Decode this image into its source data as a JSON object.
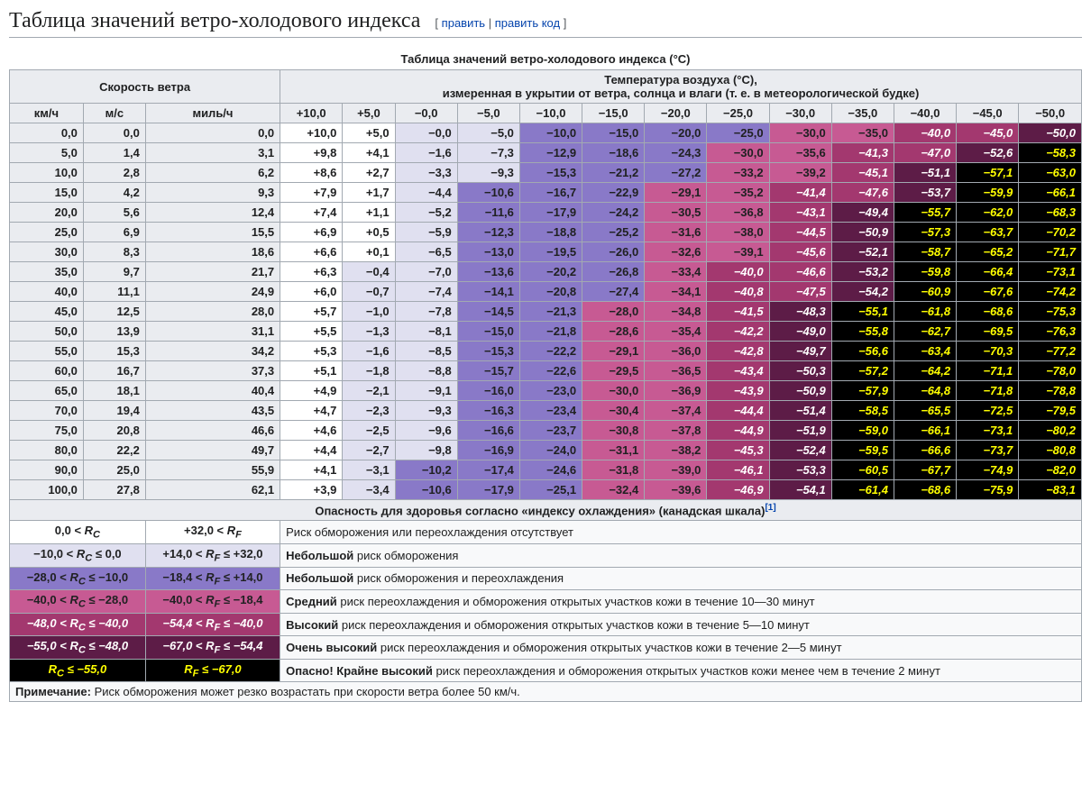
{
  "heading": "Таблица значений ветро-холодового индекса",
  "edit": {
    "open": "[",
    "sep": " | ",
    "close": "]",
    "edit": "править",
    "editcode": "править код"
  },
  "caption": "Таблица значений ветро-холодового индекса (°C)",
  "windHeader": "Скорость ветра",
  "tempHeader1": "Температура воздуха (°C),",
  "tempHeader2": "измеренная в укрытии от ветра, солнца и влаги (т. е. в метеорологической будке)",
  "windUnits": [
    "км/ч",
    "м/с",
    "миль/ч"
  ],
  "tempCols": [
    "+10,0",
    "+5,0",
    "−0,0",
    "−5,0",
    "−10,0",
    "−15,0",
    "−20,0",
    "−25,0",
    "−30,0",
    "−35,0",
    "−40,0",
    "−45,0",
    "−50,0"
  ],
  "bands": [
    {
      "min": 0.01,
      "max": 1000000000.0,
      "bg": "#ffffff",
      "fg": "#202122",
      "italic": false
    },
    {
      "min": -9.999,
      "max": 0.01,
      "bg": "#e0e0f0",
      "fg": "#202122",
      "italic": false
    },
    {
      "min": -27.999,
      "max": -9.999,
      "bg": "#8979c8",
      "fg": "#202122",
      "italic": false
    },
    {
      "min": -39.999,
      "max": -27.999,
      "bg": "#c75a93",
      "fg": "#202122",
      "italic": false
    },
    {
      "min": -47.999,
      "max": -39.999,
      "bg": "#a3386f",
      "fg": "#ffffff",
      "italic": true
    },
    {
      "min": -54.999,
      "max": -47.999,
      "bg": "#5d1c47",
      "fg": "#ffffff",
      "italic": true
    },
    {
      "min": -1000000000.0,
      "max": -54.999,
      "bg": "#000000",
      "fg": "#ffff00",
      "italic": true
    }
  ],
  "rows": [
    {
      "w": [
        "0,0",
        "0,0",
        "0,0"
      ],
      "v": [
        10.0,
        5.0,
        -0.0,
        -5.0,
        -10.0,
        -15.0,
        -20.0,
        -25.0,
        -30.0,
        -35.0,
        -40.0,
        -45.0,
        -50.0
      ]
    },
    {
      "w": [
        "5,0",
        "1,4",
        "3,1"
      ],
      "v": [
        9.8,
        4.1,
        -1.6,
        -7.3,
        -12.9,
        -18.6,
        -24.3,
        -30.0,
        -35.6,
        -41.3,
        -47.0,
        -52.6,
        -58.3
      ]
    },
    {
      "w": [
        "10,0",
        "2,8",
        "6,2"
      ],
      "v": [
        8.6,
        2.7,
        -3.3,
        -9.3,
        -15.3,
        -21.2,
        -27.2,
        -33.2,
        -39.2,
        -45.1,
        -51.1,
        -57.1,
        -63.0
      ]
    },
    {
      "w": [
        "15,0",
        "4,2",
        "9,3"
      ],
      "v": [
        7.9,
        1.7,
        -4.4,
        -10.6,
        -16.7,
        -22.9,
        -29.1,
        -35.2,
        -41.4,
        -47.6,
        -53.7,
        -59.9,
        -66.1
      ]
    },
    {
      "w": [
        "20,0",
        "5,6",
        "12,4"
      ],
      "v": [
        7.4,
        1.1,
        -5.2,
        -11.6,
        -17.9,
        -24.2,
        -30.5,
        -36.8,
        -43.1,
        -49.4,
        -55.7,
        -62.0,
        -68.3
      ]
    },
    {
      "w": [
        "25,0",
        "6,9",
        "15,5"
      ],
      "v": [
        6.9,
        0.5,
        -5.9,
        -12.3,
        -18.8,
        -25.2,
        -31.6,
        -38.0,
        -44.5,
        -50.9,
        -57.3,
        -63.7,
        -70.2
      ]
    },
    {
      "w": [
        "30,0",
        "8,3",
        "18,6"
      ],
      "v": [
        6.6,
        0.1,
        -6.5,
        -13.0,
        -19.5,
        -26.0,
        -32.6,
        -39.1,
        -45.6,
        -52.1,
        -58.7,
        -65.2,
        -71.7
      ]
    },
    {
      "w": [
        "35,0",
        "9,7",
        "21,7"
      ],
      "v": [
        6.3,
        -0.4,
        -7.0,
        -13.6,
        -20.2,
        -26.8,
        -33.4,
        -40.0,
        -46.6,
        -53.2,
        -59.8,
        -66.4,
        -73.1
      ]
    },
    {
      "w": [
        "40,0",
        "11,1",
        "24,9"
      ],
      "v": [
        6.0,
        -0.7,
        -7.4,
        -14.1,
        -20.8,
        -27.4,
        -34.1,
        -40.8,
        -47.5,
        -54.2,
        -60.9,
        -67.6,
        -74.2
      ]
    },
    {
      "w": [
        "45,0",
        "12,5",
        "28,0"
      ],
      "v": [
        5.7,
        -1.0,
        -7.8,
        -14.5,
        -21.3,
        -28.0,
        -34.8,
        -41.5,
        -48.3,
        -55.1,
        -61.8,
        -68.6,
        -75.3
      ]
    },
    {
      "w": [
        "50,0",
        "13,9",
        "31,1"
      ],
      "v": [
        5.5,
        -1.3,
        -8.1,
        -15.0,
        -21.8,
        -28.6,
        -35.4,
        -42.2,
        -49.0,
        -55.8,
        -62.7,
        -69.5,
        -76.3
      ]
    },
    {
      "w": [
        "55,0",
        "15,3",
        "34,2"
      ],
      "v": [
        5.3,
        -1.6,
        -8.5,
        -15.3,
        -22.2,
        -29.1,
        -36.0,
        -42.8,
        -49.7,
        -56.6,
        -63.4,
        -70.3,
        -77.2
      ]
    },
    {
      "w": [
        "60,0",
        "16,7",
        "37,3"
      ],
      "v": [
        5.1,
        -1.8,
        -8.8,
        -15.7,
        -22.6,
        -29.5,
        -36.5,
        -43.4,
        -50.3,
        -57.2,
        -64.2,
        -71.1,
        -78.0
      ]
    },
    {
      "w": [
        "65,0",
        "18,1",
        "40,4"
      ],
      "v": [
        4.9,
        -2.1,
        -9.1,
        -16.0,
        -23.0,
        -30.0,
        -36.9,
        -43.9,
        -50.9,
        -57.9,
        -64.8,
        -71.8,
        -78.8
      ]
    },
    {
      "w": [
        "70,0",
        "19,4",
        "43,5"
      ],
      "v": [
        4.7,
        -2.3,
        -9.3,
        -16.3,
        -23.4,
        -30.4,
        -37.4,
        -44.4,
        -51.4,
        -58.5,
        -65.5,
        -72.5,
        -79.5
      ]
    },
    {
      "w": [
        "75,0",
        "20,8",
        "46,6"
      ],
      "v": [
        4.6,
        -2.5,
        -9.6,
        -16.6,
        -23.7,
        -30.8,
        -37.8,
        -44.9,
        -51.9,
        -59.0,
        -66.1,
        -73.1,
        -80.2
      ]
    },
    {
      "w": [
        "80,0",
        "22,2",
        "49,7"
      ],
      "v": [
        4.4,
        -2.7,
        -9.8,
        -16.9,
        -24.0,
        -31.1,
        -38.2,
        -45.3,
        -52.4,
        -59.5,
        -66.6,
        -73.7,
        -80.8
      ]
    },
    {
      "w": [
        "90,0",
        "25,0",
        "55,9"
      ],
      "v": [
        4.1,
        -3.1,
        -10.2,
        -17.4,
        -24.6,
        -31.8,
        -39.0,
        -46.1,
        -53.3,
        -60.5,
        -67.7,
        -74.9,
        -82.0
      ]
    },
    {
      "w": [
        "100,0",
        "27,8",
        "62,1"
      ],
      "v": [
        3.9,
        -3.4,
        -10.6,
        -17.9,
        -25.1,
        -32.4,
        -39.6,
        -46.9,
        -54.1,
        -61.4,
        -68.6,
        -75.9,
        -83.1
      ]
    }
  ],
  "legendHeader": "Опасность для здоровья согласно «индексу охлаждения» (канадская шкала)",
  "legendRef": "[1]",
  "legend": [
    {
      "band": 0,
      "rc": "0,0 < R_C",
      "rf": "+32,0 < R_F",
      "descB": "",
      "desc": "Риск обморожения или переохлаждения отсутствует"
    },
    {
      "band": 1,
      "rc": "−10,0 < R_C ≤ 0,0",
      "rf": "+14,0 < R_F ≤ +32,0",
      "descB": "Небольшой",
      "desc": " риск обморожения"
    },
    {
      "band": 2,
      "rc": "−28,0 < R_C ≤ −10,0",
      "rf": "−18,4 < R_F ≤ +14,0",
      "descB": "Небольшой",
      "desc": " риск обморожения и переохлаждения"
    },
    {
      "band": 3,
      "rc": "−40,0 < R_C ≤ −28,0",
      "rf": "−40,0 < R_F ≤ −18,4",
      "descB": "Средний",
      "desc": " риск переохлаждения и обморожения открытых участков кожи в течение 10—30 минут"
    },
    {
      "band": 4,
      "rc": "−48,0 < R_C ≤ −40,0",
      "rf": "−54,4 < R_F ≤ −40,0",
      "descB": "Высокий",
      "desc": " риск переохлаждения и обморожения открытых участков кожи в течение 5—10 минут"
    },
    {
      "band": 5,
      "rc": "−55,0 < R_C ≤ −48,0",
      "rf": "−67,0 < R_F ≤ −54,4",
      "descB": "Очень высокий",
      "desc": " риск переохлаждения и обморожения открытых участков кожи в течение 2—5 минут"
    },
    {
      "band": 6,
      "rc": "R_C ≤ −55,0",
      "rf": "R_F ≤ −67,0",
      "descB": "Опасно! Крайне высокий",
      "desc": " риск переохлаждения и обморожения открытых участков кожи менее чем в течение 2 минут"
    }
  ],
  "noteLabel": "Примечание:",
  "noteText": " Риск обморожения может резко возрастать при скорости ветра более 50 км/ч."
}
